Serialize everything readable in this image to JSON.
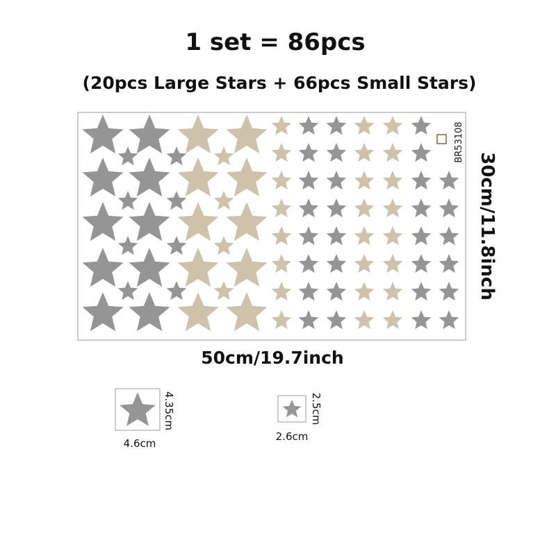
{
  "header": {
    "title": "1 set = 86pcs",
    "subtitle": "(20pcs Large Stars  + 66pcs Small Stars)"
  },
  "sheet": {
    "code": "BR53108",
    "height_label": "30cm/11.8inch",
    "width_label": "50cm/19.7inch"
  },
  "samples": [
    {
      "height": "4.35cm",
      "width": "4.6cm"
    },
    {
      "height": "2.5cm",
      "width": "2.6cm"
    }
  ]
}
